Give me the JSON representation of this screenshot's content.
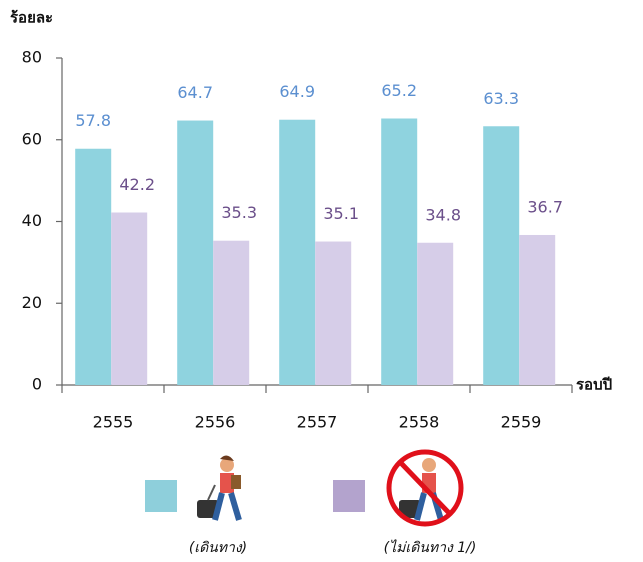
{
  "chart_data": {
    "type": "bar",
    "y_axis_label": "ร้อยละ",
    "x_axis_label": "รอบปี",
    "categories": [
      "2555",
      "2556",
      "2557",
      "2558",
      "2559"
    ],
    "series": [
      {
        "name": "(เดินทาง)",
        "color": "#8fd3df",
        "label_color": "#5b8fd0",
        "legend_color": "#8ecfdb",
        "values": [
          57.8,
          64.7,
          64.9,
          65.2,
          63.3
        ]
      },
      {
        "name": "(ไม่เดินทาง 1/)",
        "color": "#d6cde8",
        "label_color": "#6b4f8a",
        "legend_color": "#b3a3cd",
        "values": [
          42.2,
          35.3,
          35.1,
          34.8,
          36.7
        ]
      }
    ],
    "ylim": [
      0,
      80
    ],
    "yticks": [
      0,
      20,
      40,
      60,
      80
    ],
    "grid": false
  }
}
